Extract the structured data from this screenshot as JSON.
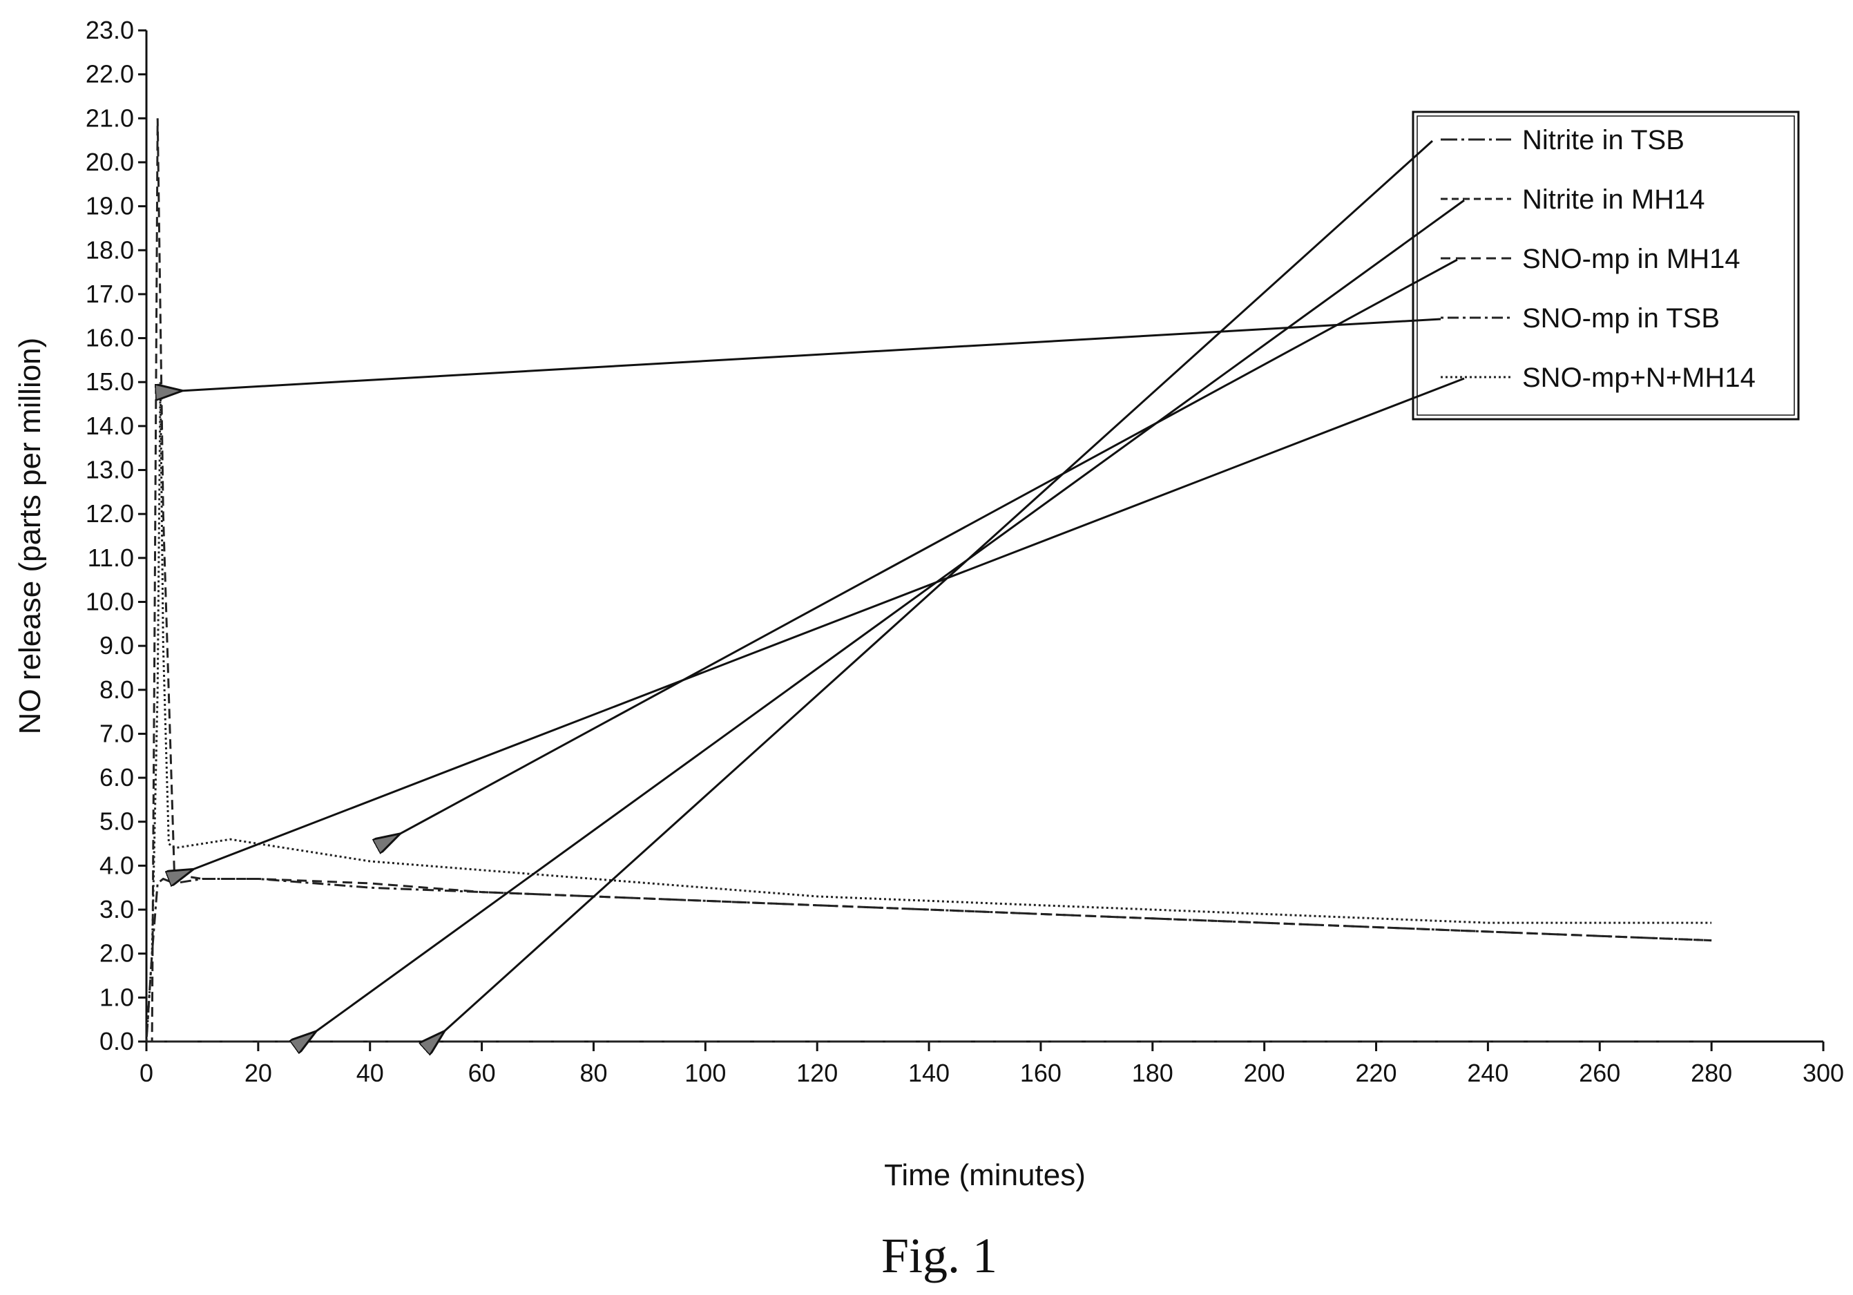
{
  "figure": {
    "caption": "Fig. 1"
  },
  "chart_data": {
    "type": "line",
    "xlabel": "Time  (minutes)",
    "ylabel": "NO release (parts per million)",
    "xlim": [
      0,
      300
    ],
    "ylim": [
      0,
      23
    ],
    "x_ticks": [
      0,
      20,
      40,
      60,
      80,
      100,
      120,
      140,
      160,
      180,
      200,
      220,
      240,
      260,
      280,
      300
    ],
    "y_ticks": [
      "0.0",
      "1.0",
      "2.0",
      "3.0",
      "4.0",
      "5.0",
      "6.0",
      "7.0",
      "8.0",
      "9.0",
      "10.0",
      "11.0",
      "12.0",
      "13.0",
      "14.0",
      "15.0",
      "16.0",
      "17.0",
      "18.0",
      "19.0",
      "20.0",
      "21.0",
      "22.0",
      "23.0"
    ],
    "grid": false,
    "legend_position": "top-right",
    "series": [
      {
        "name": "Nitrite in TSB",
        "dash": "24 6 4 6",
        "x": [
          0,
          280
        ],
        "y": [
          0.0,
          0.0
        ]
      },
      {
        "name": "Nitrite in MH14",
        "dash": "10 6",
        "x": [
          0,
          280
        ],
        "y": [
          0.0,
          0.0
        ]
      },
      {
        "name": "SNO-mp in MH14",
        "dash": "14 8",
        "x": [
          0,
          1,
          1.5,
          2,
          3,
          5,
          10,
          20,
          40,
          60,
          80,
          100,
          120,
          140,
          160,
          180,
          200,
          220,
          240,
          260,
          280
        ],
        "y": [
          0.0,
          0.0,
          10.0,
          21.0,
          12.0,
          3.8,
          3.7,
          3.7,
          3.6,
          3.4,
          3.3,
          3.2,
          3.1,
          3.0,
          2.9,
          2.8,
          2.7,
          2.6,
          2.5,
          2.4,
          2.3
        ]
      },
      {
        "name": "SNO-mp in TSB",
        "dash": "4 6 16 6",
        "x": [
          0,
          1,
          2,
          3,
          5,
          10,
          20,
          40,
          60,
          80,
          100,
          120,
          140,
          160,
          180,
          200,
          220,
          240,
          260,
          280
        ],
        "y": [
          0.0,
          2.0,
          3.6,
          3.7,
          3.6,
          3.7,
          3.7,
          3.5,
          3.4,
          3.3,
          3.2,
          3.1,
          3.0,
          2.9,
          2.8,
          2.7,
          2.6,
          2.5,
          2.4,
          2.3
        ]
      },
      {
        "name": "SNO-mp+N+MH14",
        "dash": "3 4",
        "x": [
          0,
          1,
          2,
          2.5,
          3,
          4,
          5,
          10,
          15,
          20,
          40,
          60,
          80,
          100,
          120,
          140,
          160,
          180,
          200,
          220,
          240,
          260,
          280
        ],
        "y": [
          0.0,
          2.0,
          8.0,
          15.0,
          9.0,
          4.5,
          4.4,
          4.5,
          4.6,
          4.5,
          4.1,
          3.9,
          3.7,
          3.5,
          3.3,
          3.2,
          3.1,
          3.0,
          2.9,
          2.8,
          2.7,
          2.7,
          2.7
        ]
      }
    ],
    "arrow_targets": [
      {
        "to": "Nitrite in TSB",
        "x": 53,
        "y": 0.2
      },
      {
        "to": "Nitrite in MH14",
        "x": 30,
        "y": 0.2
      },
      {
        "to": "SNO-mp in MH14",
        "x": 45,
        "y": 4.7
      },
      {
        "to": "SNO-mp in TSB",
        "x": 6,
        "y": 14.8
      },
      {
        "to": "SNO-mp+N+MH14",
        "x": 8,
        "y": 3.9
      }
    ]
  }
}
